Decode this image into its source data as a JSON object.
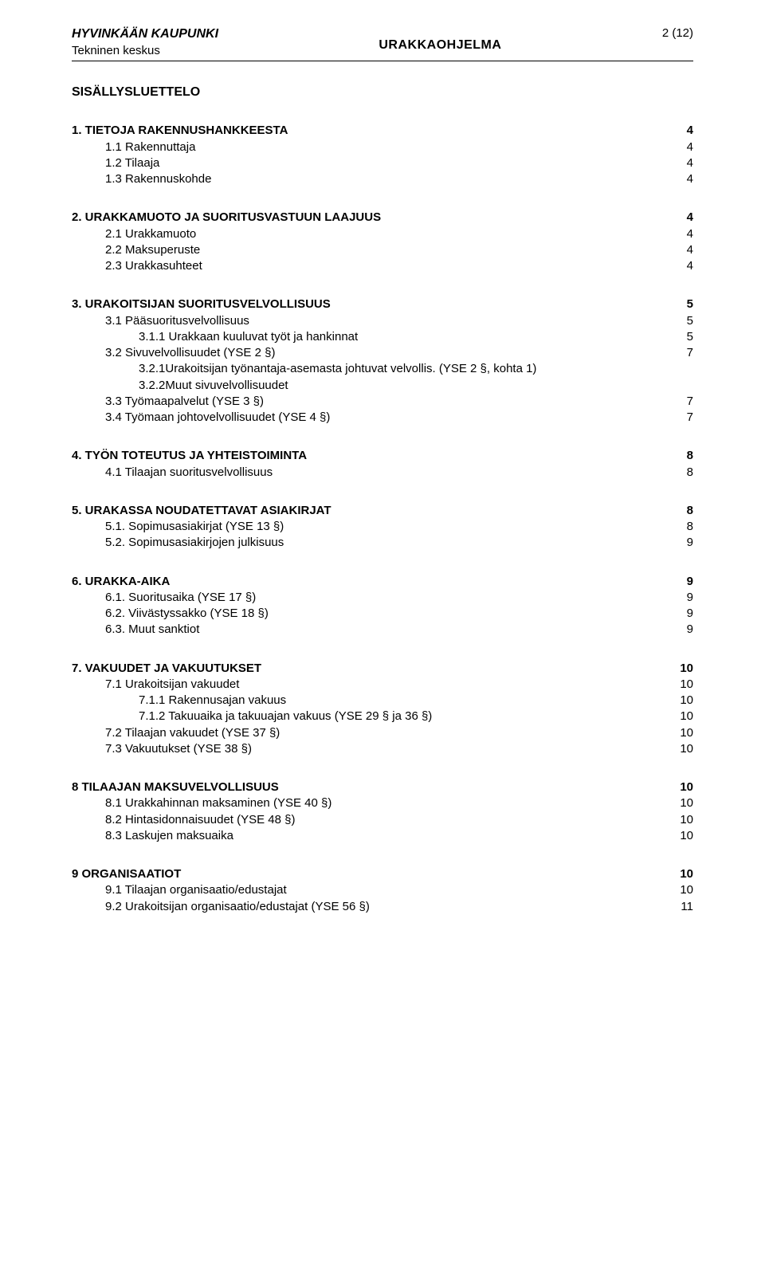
{
  "header": {
    "org": "HYVINKÄÄN KAUPUNKI",
    "dept": "Tekninen keskus",
    "doc": "URAKKAOHJELMA",
    "page": "2 (12)"
  },
  "toc_title": "SISÄLLYSLUETTELO",
  "s1": {
    "h": {
      "t": "1.   TIETOJA RAKENNUSHANKKEESTA",
      "p": "4"
    },
    "i1": {
      "t": "1.1  Rakennuttaja",
      "p": "4"
    },
    "i2": {
      "t": "1.2  Tilaaja",
      "p": "4"
    },
    "i3": {
      "t": "1.3  Rakennuskohde",
      "p": "4"
    }
  },
  "s2": {
    "h": {
      "t": "2.   URAKKAMUOTO JA SUORITUSVASTUUN LAAJUUS",
      "p": "4"
    },
    "i1": {
      "t": "2.1  Urakkamuoto",
      "p": "4"
    },
    "i2": {
      "t": "2.2  Maksuperuste",
      "p": "4"
    },
    "i3": {
      "t": "2.3  Urakkasuhteet",
      "p": "4"
    }
  },
  "s3": {
    "h": {
      "t": "3.   URAKOITSIJAN SUORITUSVELVOLLISUUS",
      "p": "5"
    },
    "i1": {
      "t": "3.1  Pääsuoritusvelvollisuus",
      "p": "5"
    },
    "i1_1": {
      "t": "3.1.1   Urakkaan kuuluvat työt ja hankinnat",
      "p": "5"
    },
    "i2": {
      "t": "3.2  Sivuvelvollisuudet (YSE 2 §)",
      "p": "7"
    },
    "i2_1": {
      "t": "3.2.1Urakoitsijan työnantaja-asemasta johtuvat velvollis. (YSE 2 §, kohta 1)"
    },
    "i2_2": {
      "t": "3.2.2Muut sivuvelvollisuudet"
    },
    "i3": {
      "t": "3.3  Työmaapalvelut (YSE 3 §)",
      "p": "7"
    },
    "i4": {
      "t": "3.4  Työmaan johtovelvollisuudet (YSE 4 §)",
      "p": "7"
    }
  },
  "s4": {
    "h": {
      "t": "4.   TYÖN TOTEUTUS JA YHTEISTOIMINTA",
      "p": "8"
    },
    "i1": {
      "t": "4.1  Tilaajan suoritusvelvollisuus",
      "p": "8"
    }
  },
  "s5": {
    "h": {
      "t": "5.   URAKASSA NOUDATETTAVAT ASIAKIRJAT",
      "p": "8"
    },
    "i1": {
      "t": "5.1. Sopimusasiakirjat (YSE 13 §)",
      "p": "8"
    },
    "i2": {
      "t": "5.2. Sopimusasiakirjojen julkisuus",
      "p": "9"
    }
  },
  "s6": {
    "h": {
      "t": "6.   URAKKA-AIKA",
      "p": "9"
    },
    "i1": {
      "t": "6.1. Suoritusaika (YSE 17 §)",
      "p": "9"
    },
    "i2": {
      "t": "6.2. Viivästyssakko (YSE 18 §)",
      "p": "9"
    },
    "i3": {
      "t": "6.3. Muut sanktiot",
      "p": "9"
    }
  },
  "s7": {
    "h": {
      "t": "7.   VAKUUDET JA VAKUUTUKSET",
      "p": "10"
    },
    "i1": {
      "t": "7.1  Urakoitsijan vakuudet",
      "p": "10"
    },
    "i1_1": {
      "t": "7.1.1   Rakennusajan vakuus",
      "p": "10"
    },
    "i1_2": {
      "t": "7.1.2   Takuuaika ja takuuajan vakuus (YSE 29 § ja 36 §)",
      "p": "10"
    },
    "i2": {
      "t": "7.2  Tilaajan vakuudet (YSE 37 §)",
      "p": "10"
    },
    "i3": {
      "t": "7.3  Vakuutukset (YSE 38 §)",
      "p": "10"
    }
  },
  "s8": {
    "h": {
      "t": "8    TILAAJAN MAKSUVELVOLLISUUS",
      "p": "10"
    },
    "i1": {
      "t": "8.1  Urakkahinnan maksaminen (YSE 40 §)",
      "p": "10"
    },
    "i2": {
      "t": "8.2  Hintasidonnaisuudet (YSE 48 §)",
      "p": "10"
    },
    "i3": {
      "t": "8.3  Laskujen maksuaika",
      "p": "10"
    }
  },
  "s9": {
    "h": {
      "t": "9    ORGANISAATIOT",
      "p": "10"
    },
    "i1": {
      "t": "9.1  Tilaajan organisaatio/edustajat",
      "p": "10"
    },
    "i2": {
      "t": "9.2  Urakoitsijan organisaatio/edustajat (YSE 56 §)",
      "p": "11"
    }
  }
}
